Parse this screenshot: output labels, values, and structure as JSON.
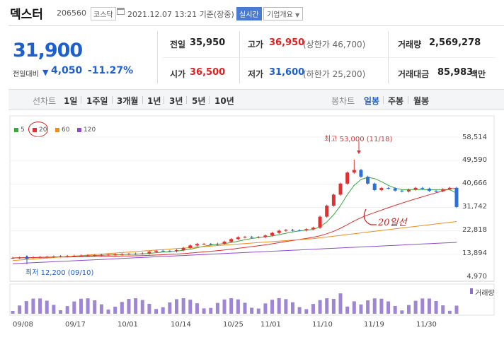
{
  "header": {
    "name": "덱스터",
    "code": "206560",
    "market": "코스닥",
    "datetime": "2021.12.07 13:21 기준(장중)",
    "realtime_label": "실시간",
    "corp_info_label": "기업개요"
  },
  "price": {
    "current": "31,900",
    "compare_label": "전일대비",
    "change": "4,050",
    "change_pct": "-11.27%"
  },
  "stats": {
    "prev_close_label": "전일",
    "prev_close": "35,950",
    "high_label": "고가",
    "high": "36,950",
    "upper_limit": "(상한가 46,700)",
    "volume_label": "거래량",
    "volume": "2,569,278",
    "open_label": "시가",
    "open": "36,500",
    "low_label": "저가",
    "low": "31,600",
    "lower_limit": "(하한가 25,200)",
    "amount_label": "거래대금",
    "amount": "85,983",
    "amount_unit": "백만"
  },
  "toolbar": {
    "line_chart": "선차트",
    "periods": [
      "1일",
      "1주일",
      "3개월",
      "1년",
      "3년",
      "5년",
      "10년"
    ],
    "candle_chart": "봉차트",
    "candle_periods": [
      "일봉",
      "주봉",
      "월봉"
    ]
  },
  "legend": [
    {
      "label": "5",
      "color": "#3aa83a"
    },
    {
      "label": "20",
      "color": "#e03030"
    },
    {
      "label": "60",
      "color": "#f08c1e"
    },
    {
      "label": "120",
      "color": "#8e4bd0"
    }
  ],
  "annotations": {
    "high": "최고 53,000 (11/18)",
    "low": "최저 12,200 (09/10)",
    "handwritten_20": "20일선",
    "volume_label": "거래량"
  },
  "chart_data": {
    "type": "candlestick",
    "y_ticks": [
      "58,514",
      "49,590",
      "40,666",
      "31,742",
      "22,818",
      "13,894",
      "4,970"
    ],
    "ylim": [
      4970,
      58514
    ],
    "x_ticks": [
      "09/08",
      "09/17",
      "10/01",
      "10/14",
      "10/25",
      "11/01",
      "11/10",
      "11/19",
      "11/30"
    ],
    "high_marker": {
      "value": 53000,
      "date": "11/18"
    },
    "low_marker": {
      "value": 12200,
      "date": "09/10"
    },
    "last_close": 31900,
    "ma_series": [
      {
        "name": "5",
        "color": "#3aa83a"
      },
      {
        "name": "20",
        "color": "#e03030"
      },
      {
        "name": "60",
        "color": "#f08c1e"
      },
      {
        "name": "120",
        "color": "#8e4bd0"
      }
    ]
  }
}
